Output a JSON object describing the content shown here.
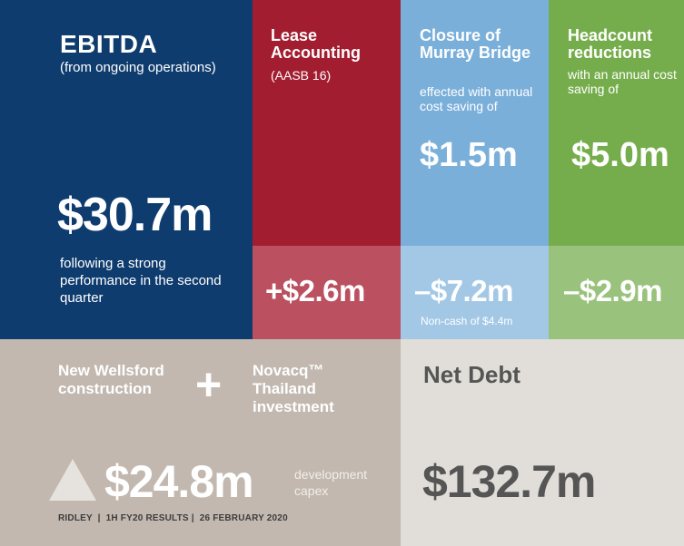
{
  "ebitda": {
    "title": "EBITDA",
    "subtitle": "(from ongoing operations)",
    "value": "$30.7m",
    "description": "following a strong performance in the second quarter"
  },
  "lease": {
    "title": "Lease Accounting",
    "subtitle": "(AASB 16)",
    "impact": "+$2.6m"
  },
  "murray": {
    "title": "Closure of Murray Bridge",
    "subtitle": "effected with annual cost saving of",
    "saving": "$1.5m",
    "impact": "–$7.2m",
    "note": "Non-cash of $4.4m"
  },
  "headcount": {
    "title": "Headcount reductions",
    "subtitle": "with an annual cost saving of",
    "saving": "$5.0m",
    "impact": "–$2.9m"
  },
  "capex": {
    "project_left": "New Wellsford construction",
    "plus": "+",
    "project_right": "Novacq™ Thailand investment",
    "value": "$24.8m",
    "note": "development capex",
    "indicator_icon": "triangle-up-icon"
  },
  "footer": {
    "text": "RIDLEY  |  1H FY20 RESULTS |  26 FEBRUARY 2020"
  },
  "net_debt": {
    "title": "Net Debt",
    "value": "$132.7m"
  },
  "colors": {
    "navy": "#0f3c6e",
    "red": "#a31d30",
    "red_light": "#bb5060",
    "blue": "#7aafda",
    "blue_light": "#a3c8e6",
    "green": "#76ad4c",
    "green_light": "#99c27c",
    "taupe": "#c2b8b0",
    "light_grey": "#e1ddd8"
  }
}
